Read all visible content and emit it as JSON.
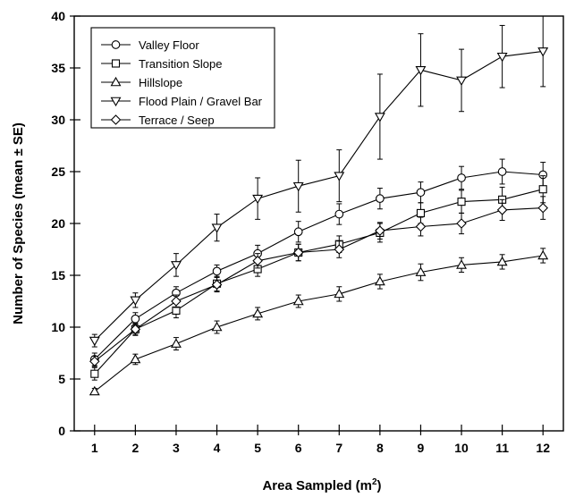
{
  "chart_data": {
    "type": "line",
    "title": "",
    "xlabel": "Area Sampled (m",
    "xlabel_superscript": "2",
    "xlabel_suffix": ")",
    "ylabel": "Number of Species (mean ± SE)",
    "xlim": [
      0.5,
      12.5
    ],
    "ylim": [
      0,
      40
    ],
    "x": [
      1,
      2,
      3,
      4,
      5,
      6,
      7,
      8,
      9,
      10,
      11,
      12
    ],
    "x_ticks": [
      "1",
      "2",
      "3",
      "4",
      "5",
      "6",
      "7",
      "8",
      "9",
      "10",
      "11",
      "12"
    ],
    "y_ticks": [
      0,
      5,
      10,
      15,
      20,
      25,
      30,
      35,
      40
    ],
    "grid": false,
    "legend_position": "top-left",
    "series": [
      {
        "name": "Valley Floor",
        "marker": "circle",
        "values": [
          6.9,
          10.8,
          13.3,
          15.4,
          17.1,
          19.2,
          20.9,
          22.4,
          23.0,
          24.4,
          25.0,
          24.7
        ],
        "se": [
          0.6,
          0.6,
          0.6,
          0.6,
          0.8,
          1.0,
          1.0,
          1.0,
          1.0,
          1.1,
          1.2,
          1.2
        ]
      },
      {
        "name": "Transition Slope",
        "marker": "square",
        "values": [
          5.5,
          9.8,
          11.6,
          14.2,
          15.6,
          17.2,
          18.0,
          19.1,
          21.0,
          22.1,
          22.3,
          23.3
        ],
        "se": [
          0.6,
          0.6,
          0.7,
          0.7,
          0.7,
          0.8,
          0.8,
          0.9,
          1.0,
          1.1,
          1.2,
          1.3
        ]
      },
      {
        "name": "Hillslope",
        "marker": "triangle-up",
        "values": [
          3.8,
          6.9,
          8.4,
          10.0,
          11.3,
          12.5,
          13.2,
          14.4,
          15.3,
          16.0,
          16.3,
          16.9
        ],
        "se": [
          0.3,
          0.5,
          0.6,
          0.6,
          0.6,
          0.6,
          0.7,
          0.7,
          0.8,
          0.7,
          0.7,
          0.7
        ]
      },
      {
        "name": "Flood Plain / Gravel Bar",
        "marker": "triangle-down",
        "values": [
          8.7,
          12.6,
          16.0,
          19.6,
          22.4,
          23.6,
          24.6,
          30.3,
          34.8,
          33.8,
          36.1,
          36.6
        ],
        "se": [
          0.6,
          0.7,
          1.1,
          1.3,
          2.0,
          2.5,
          2.5,
          4.1,
          3.5,
          3.0,
          3.0,
          3.4
        ]
      },
      {
        "name": "Terrace / Seep",
        "marker": "diamond",
        "values": [
          6.7,
          9.8,
          12.5,
          14.1,
          16.4,
          17.2,
          17.5,
          19.3,
          19.7,
          20.0,
          21.3,
          21.5
        ],
        "se": [
          0.5,
          0.5,
          0.6,
          0.7,
          0.7,
          0.8,
          0.8,
          0.8,
          0.9,
          1.0,
          1.0,
          1.1
        ]
      }
    ]
  }
}
